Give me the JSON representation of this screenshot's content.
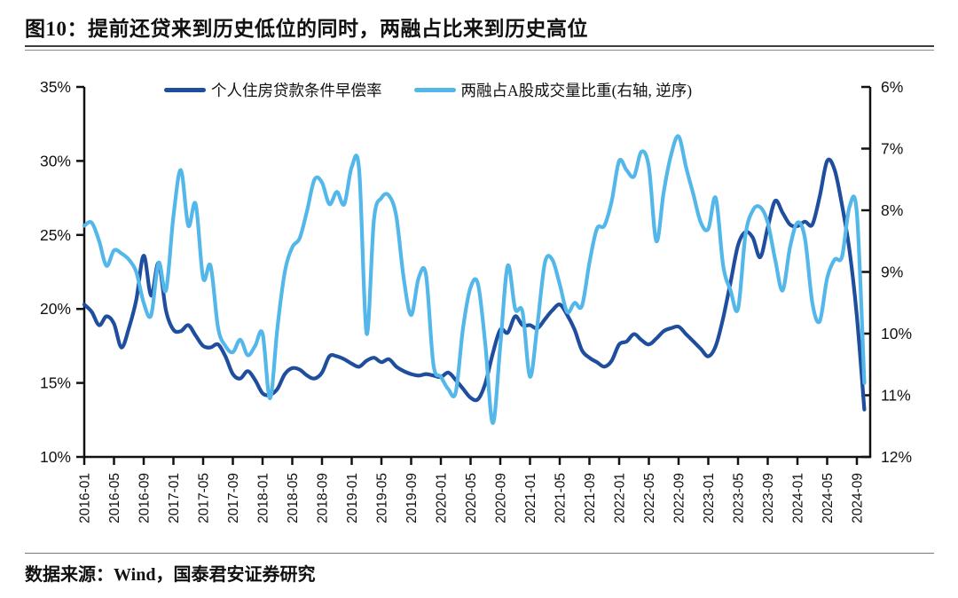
{
  "title": "图10：提前还贷来到历史低位的同时，两融占比来到历史高位",
  "footer": {
    "source": "数据来源：Wind，国泰君安证券研究"
  },
  "colors": {
    "axis": "#111111",
    "text": "#111111",
    "dark_series": "#1F4E9E",
    "light_series": "#54B7EA"
  },
  "chart_data": {
    "type": "line",
    "title": "",
    "x_monthly_start": "2016-01",
    "x_monthly_end": "2024-10",
    "grid": false,
    "legend_position": "top",
    "x_tick_labels": [
      "2016-01",
      "2016-05",
      "2016-09",
      "2017-01",
      "2017-05",
      "2017-09",
      "2018-01",
      "2018-05",
      "2018-09",
      "2019-01",
      "2019-05",
      "2019-09",
      "2020-01",
      "2020-05",
      "2020-09",
      "2021-01",
      "2021-05",
      "2021-09",
      "2022-01",
      "2022-05",
      "2022-09",
      "2023-01",
      "2023-05",
      "2023-09",
      "2024-01",
      "2024-05",
      "2024-09"
    ],
    "left_axis": {
      "min": 10,
      "max": 35,
      "tick_labels": [
        "35%",
        "30%",
        "25%",
        "20%",
        "15%",
        "10%"
      ]
    },
    "right_axis": {
      "min": 6,
      "max": 12,
      "inverted": true,
      "tick_labels": [
        "6%",
        "7%",
        "8%",
        "9%",
        "10%",
        "11%",
        "12%"
      ]
    },
    "series": [
      {
        "name": "个人住房贷款条件早偿率",
        "axis": "left",
        "color": "#1F4E9E",
        "values": [
          20.3,
          19.8,
          18.9,
          19.5,
          19.0,
          17.4,
          18.7,
          20.6,
          23.6,
          20.9,
          23.1,
          19.9,
          18.6,
          18.5,
          18.9,
          18.2,
          17.5,
          17.4,
          17.6,
          16.8,
          15.6,
          15.3,
          15.8,
          15.2,
          14.3,
          14.2,
          14.6,
          15.6,
          16.0,
          15.9,
          15.5,
          15.3,
          15.7,
          16.8,
          16.8,
          16.6,
          16.3,
          16.1,
          16.5,
          16.7,
          16.4,
          16.6,
          16.1,
          15.8,
          15.6,
          15.5,
          15.6,
          15.5,
          15.4,
          15.7,
          15.2,
          14.6,
          14.0,
          13.9,
          15.0,
          17.0,
          18.6,
          18.4,
          19.5,
          18.9,
          18.9,
          18.7,
          19.3,
          19.9,
          20.3,
          19.6,
          18.6,
          17.2,
          16.7,
          16.4,
          16.1,
          16.5,
          17.6,
          17.8,
          18.3,
          17.9,
          17.6,
          18.0,
          18.5,
          18.7,
          18.8,
          18.3,
          17.8,
          17.3,
          16.8,
          17.5,
          19.4,
          21.8,
          24.3,
          25.2,
          24.8,
          23.5,
          25.5,
          27.3,
          26.5,
          25.7,
          25.6,
          25.9,
          25.7,
          27.6,
          30.0,
          29.4,
          27.0,
          24.0,
          19.5,
          13.2
        ]
      },
      {
        "name": "两融占A股成交量比重(右轴, 逆序)",
        "axis": "right",
        "color": "#54B7EA",
        "values": [
          8.25,
          8.2,
          8.5,
          8.9,
          8.65,
          8.7,
          8.8,
          9.0,
          9.5,
          9.7,
          8.85,
          9.3,
          8.1,
          7.35,
          8.25,
          7.9,
          9.1,
          8.9,
          9.9,
          10.2,
          10.3,
          10.1,
          10.35,
          10.2,
          10.0,
          11.05,
          9.9,
          9.0,
          8.6,
          8.45,
          8.0,
          7.5,
          7.55,
          7.9,
          7.7,
          7.9,
          7.3,
          7.35,
          10.0,
          8.15,
          7.8,
          7.76,
          8.1,
          9.1,
          9.7,
          9.1,
          9.05,
          10.5,
          10.7,
          10.9,
          10.95,
          9.9,
          9.25,
          9.2,
          10.2,
          11.45,
          10.2,
          8.9,
          9.6,
          9.65,
          10.7,
          9.85,
          8.85,
          8.8,
          9.2,
          9.65,
          9.5,
          9.55,
          8.85,
          8.3,
          8.25,
          7.85,
          7.2,
          7.35,
          7.45,
          7.05,
          7.3,
          8.5,
          7.7,
          7.1,
          6.8,
          7.3,
          7.75,
          8.2,
          8.3,
          7.8,
          8.9,
          9.3,
          9.6,
          8.4,
          8.0,
          7.95,
          8.2,
          8.8,
          9.3,
          8.6,
          8.2,
          8.45,
          9.5,
          9.8,
          9.1,
          8.8,
          8.75,
          7.95,
          8.05,
          10.8
        ]
      }
    ]
  }
}
